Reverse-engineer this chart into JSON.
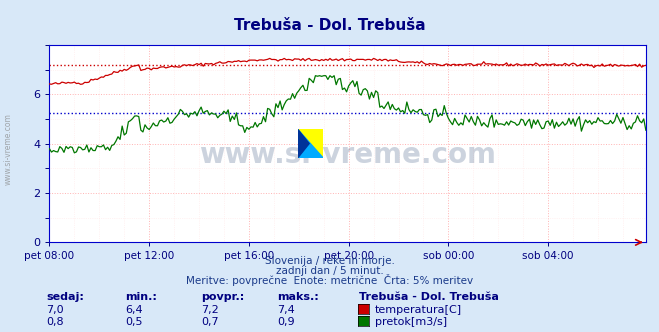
{
  "title": "Trebuša - Dol. Trebuša",
  "title_color": "#000080",
  "title_fontsize": 11,
  "bg_color": "#d8e8f8",
  "plot_bg_color": "#ffffff",
  "xlabel_ticks": [
    "pet 08:00",
    "pet 12:00",
    "pet 16:00",
    "pet 20:00",
    "sob 00:00",
    "sob 04:00"
  ],
  "tick_positions": [
    0,
    48,
    96,
    144,
    192,
    240
  ],
  "total_points": 288,
  "ylim": [
    0,
    8.0
  ],
  "yticks": [
    0,
    2,
    4,
    6
  ],
  "y2lim": [
    0,
    1.0667
  ],
  "grid_color": "#ffaaaa",
  "grid_color_minor": "#ffdddd",
  "temp_color": "#cc0000",
  "flow_color": "#007700",
  "avg_temp_color": "#cc0000",
  "avg_flow_color": "#0000cc",
  "avg_temp": 7.2,
  "avg_flow": 0.7,
  "temp_min": 6.4,
  "temp_max": 7.4,
  "flow_min": 0.5,
  "flow_max": 0.9,
  "temp_now": 7.0,
  "flow_now": 0.8,
  "watermark": "www.si-vreme.com",
  "watermark_color": "#1a3a6a",
  "watermark_alpha": 0.22,
  "subtitle1": "Slovenija / reke in morje.",
  "subtitle2": "zadnji dan / 5 minut.",
  "subtitle3": "Meritve: povprečne  Enote: metrične  Črta: 5% meritev",
  "subtitle_color": "#1a3a8a",
  "legend_title": "Trebuša - Dol. Trebuša",
  "legend_color": "#000080",
  "table_color": "#000080",
  "sidebar_text": "www.si-vreme.com",
  "sidebar_color": "#888888"
}
